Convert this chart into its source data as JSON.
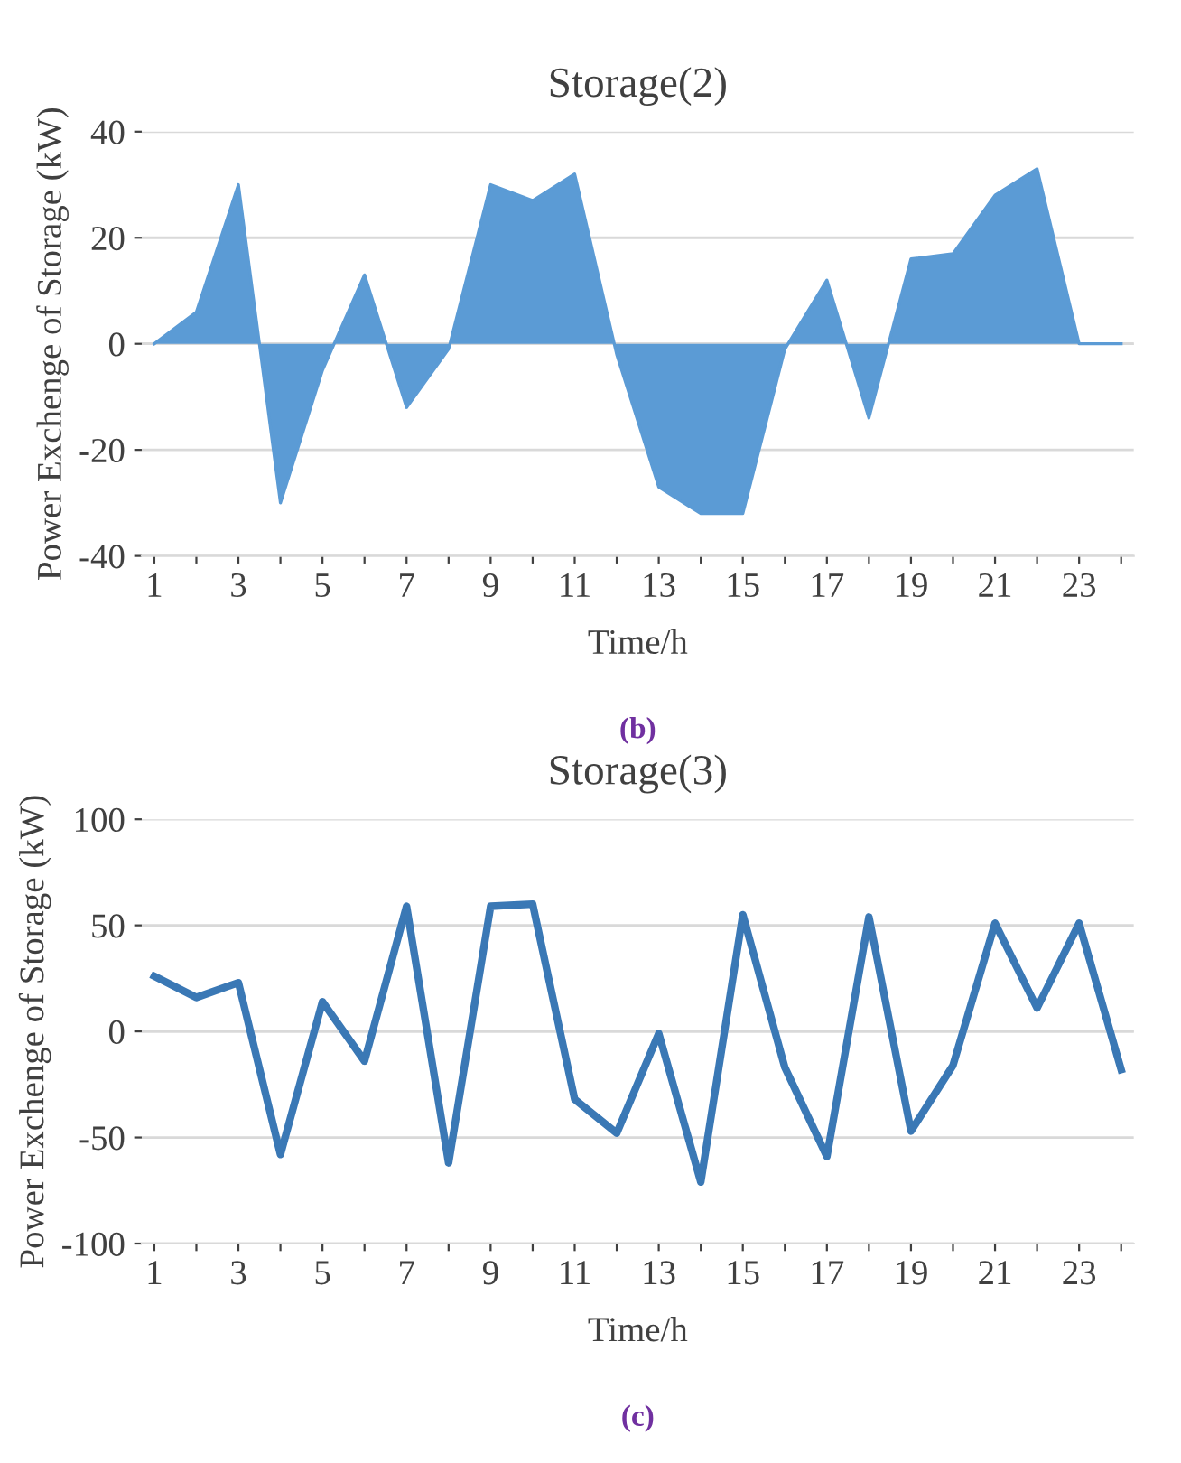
{
  "chart_data": [
    {
      "type": "area",
      "title": "Storage(2)",
      "xlabel": "Time/h",
      "ylabel": "Power Exchenge of Storage (kW)",
      "categories": [
        "1",
        null,
        "3",
        null,
        "5",
        null,
        "7",
        null,
        "9",
        null,
        "11",
        null,
        "13",
        null,
        "15",
        null,
        "17",
        null,
        "19",
        null,
        "21",
        null,
        "23",
        null
      ],
      "series": [
        {
          "color": "#5b9bd5",
          "values": [
            0,
            6,
            30,
            -30,
            -5,
            13,
            -12,
            -1,
            30,
            27,
            32,
            -2,
            -27,
            -32,
            -32,
            -1,
            12,
            -14,
            16,
            17,
            28,
            33,
            0,
            0
          ]
        }
      ],
      "ylim": [
        -40,
        40
      ],
      "yticks": [
        -40,
        -20,
        0,
        20,
        40
      ],
      "grid": "y",
      "annotations": [
        "(b)"
      ]
    },
    {
      "type": "line",
      "title": "Storage(3)",
      "xlabel": "Time/h",
      "ylabel": "Power Exchenge of Storage (kW)",
      "categories": [
        "1",
        null,
        "3",
        null,
        "5",
        null,
        "7",
        null,
        "9",
        null,
        "11",
        null,
        "13",
        null,
        "15",
        null,
        "17",
        null,
        "19",
        null,
        "21",
        null,
        "23",
        null
      ],
      "series": [
        {
          "color": "#3a78b5",
          "values": [
            26,
            16,
            23,
            -58,
            14,
            -14,
            59,
            -62,
            59,
            60,
            -32,
            -48,
            -1,
            -71,
            55,
            -17,
            -59,
            54,
            -47,
            -16,
            51,
            11,
            51,
            -18
          ]
        }
      ],
      "ylim": [
        -100,
        100
      ],
      "yticks": [
        -100,
        -50,
        0,
        50,
        100
      ],
      "grid": "y",
      "marker": "none",
      "line_style": "solid",
      "annotations": [
        "(c)"
      ]
    }
  ]
}
